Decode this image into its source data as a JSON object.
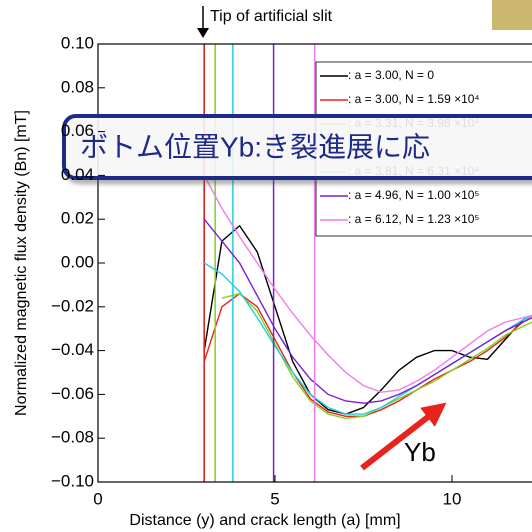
{
  "chart_data": {
    "type": "line",
    "ylabel": "Normalized magnetic flux density (Bn) [mT]",
    "xlabel": "Distance (y) and crack length (a) [mm]",
    "annotations": {
      "tip": "Tip of artificial slit",
      "yb": "Yb",
      "banner": "ボトム位置Yb:き裂進展に応"
    },
    "x": [
      3.0,
      3.5,
      4.0,
      4.5,
      5.0,
      5.5,
      6.0,
      6.5,
      7.0,
      7.5,
      8.0,
      8.5,
      9.0,
      9.5,
      10.0,
      10.5,
      11.0,
      11.5,
      12.0,
      12.26
    ],
    "series": [
      {
        "name": ": a = 3.00, N = 0",
        "color": "#000000",
        "a": 3.0,
        "values": [
          -0.04,
          0.01,
          0.017,
          0.005,
          -0.02,
          -0.045,
          -0.06,
          -0.067,
          -0.069,
          -0.066,
          -0.058,
          -0.049,
          -0.043,
          -0.04,
          -0.04,
          -0.043,
          -0.044,
          -0.035,
          -0.026,
          -0.024
        ]
      },
      {
        "name": ": a = 3.00, N = 1.59 ×10⁴",
        "color": "#e8231e",
        "a": 3.0,
        "values": [
          -0.045,
          -0.02,
          -0.014,
          -0.02,
          -0.035,
          -0.05,
          -0.062,
          -0.068,
          -0.07,
          -0.07,
          -0.067,
          -0.063,
          -0.058,
          -0.053,
          -0.049,
          -0.045,
          -0.04,
          -0.034,
          -0.027,
          -0.025
        ]
      },
      {
        "name": ": a = 3.31, N = 3.98 ×10⁴",
        "color": "#7ed321",
        "a": 3.31,
        "values": [
          null,
          -0.016,
          -0.014,
          -0.022,
          -0.037,
          -0.052,
          -0.063,
          -0.069,
          -0.071,
          -0.07,
          -0.066,
          -0.062,
          -0.058,
          -0.054,
          -0.049,
          -0.044,
          -0.039,
          -0.033,
          -0.029,
          -0.027
        ]
      },
      {
        "name": ": a = 3.81, N = 6.31 ×10⁴",
        "color": "#1fd0e0",
        "a": 3.81,
        "values": [
          0.0,
          -0.005,
          -0.013,
          -0.025,
          -0.038,
          -0.05,
          -0.06,
          -0.066,
          -0.069,
          -0.069,
          -0.066,
          -0.061,
          -0.056,
          -0.051,
          -0.046,
          -0.041,
          -0.036,
          -0.031,
          -0.026,
          -0.024
        ]
      },
      {
        "name": ": a = 4.96, N = 1.00 ×10⁵",
        "color": "#7a1fd8",
        "a": 4.96,
        "values": [
          0.02,
          0.01,
          0.0,
          -0.015,
          -0.03,
          -0.043,
          -0.053,
          -0.06,
          -0.063,
          -0.064,
          -0.063,
          -0.06,
          -0.056,
          -0.051,
          -0.046,
          -0.041,
          -0.036,
          -0.031,
          -0.027,
          -0.025
        ]
      },
      {
        "name": ": a = 6.12, N = 1.23 ×10⁵",
        "color": "#f27af0",
        "a": 6.12,
        "values": [
          0.04,
          0.025,
          0.012,
          0.0,
          -0.012,
          -0.023,
          -0.033,
          -0.042,
          -0.05,
          -0.056,
          -0.059,
          -0.058,
          -0.054,
          -0.049,
          -0.043,
          -0.037,
          -0.031,
          -0.027,
          -0.025,
          -0.024
        ]
      }
    ],
    "xlim": [
      0,
      12.26
    ],
    "ylim": [
      -0.1,
      0.1
    ],
    "xticks": [
      0,
      5,
      10
    ],
    "yticks": [
      {
        "value": 0.1,
        "label": "0.10"
      },
      {
        "value": 0.08,
        "label": "0.08"
      },
      {
        "value": 0.06,
        "label": "0.06"
      },
      {
        "value": 0.04,
        "label": "0.04"
      },
      {
        "value": 0.02,
        "label": "0.02"
      },
      {
        "value": 0.0,
        "label": "0.00"
      },
      {
        "value": -0.02,
        "label": "−0.02"
      },
      {
        "value": -0.04,
        "label": "−0.04"
      },
      {
        "value": -0.06,
        "label": "−0.06"
      },
      {
        "value": -0.08,
        "label": "−0.08"
      },
      {
        "value": -0.1,
        "label": "−0.10"
      }
    ]
  }
}
